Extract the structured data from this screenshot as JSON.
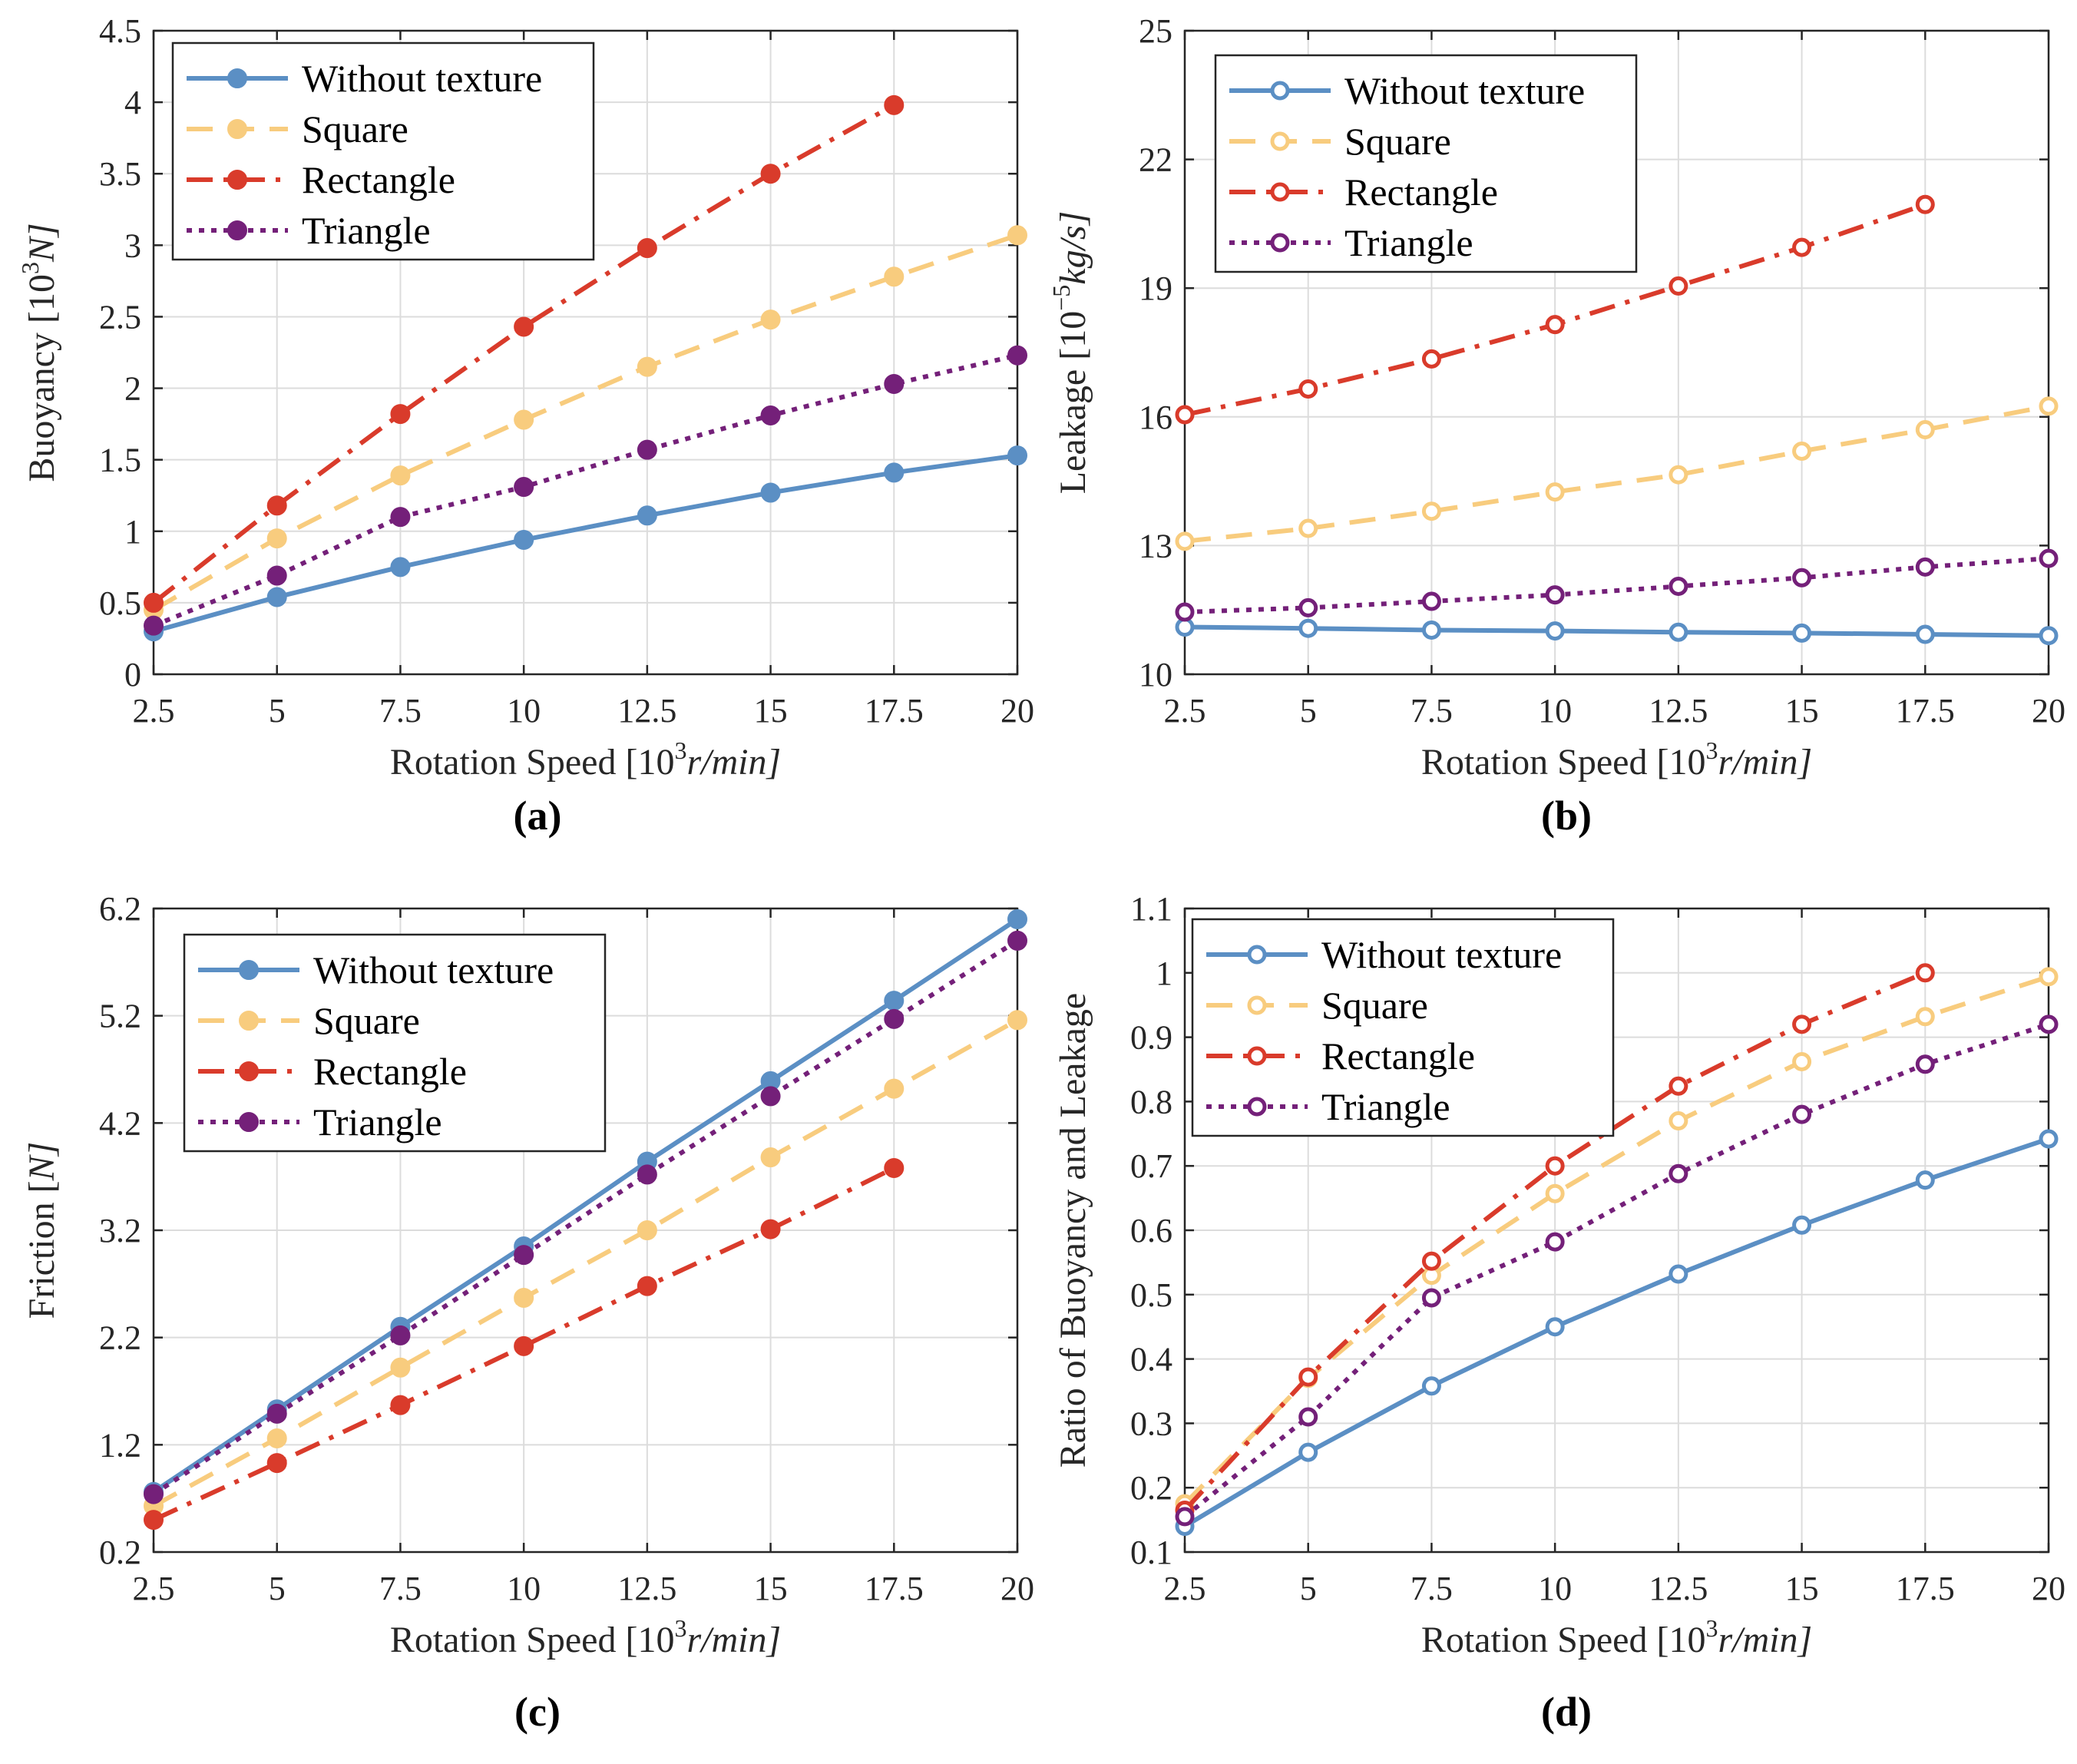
{
  "colors": {
    "without_texture": "#5b8fc4",
    "square": "#f8cc7e",
    "rectangle": "#d93b2b",
    "triangle": "#742079"
  },
  "legend_labels": [
    "Without texture",
    "Square",
    "Rectangle",
    "Triangle"
  ],
  "chart_data": [
    {
      "type": "line",
      "panel": "(a)",
      "xlabel_main": "Rotation Speed [10",
      "xlabel_sup": "3",
      "xlabel_tail": "r/min]",
      "ylabel_main": "Buoyancy [10",
      "ylabel_sup": "3",
      "ylabel_tail": "N]",
      "xlim": [
        2.5,
        20
      ],
      "ylim": [
        0,
        4.5
      ],
      "xticks": [
        "2.5",
        "5",
        "7.5",
        "10",
        "12.5",
        "15",
        "17.5",
        "20"
      ],
      "yticks": [
        "0",
        "0.5",
        "1",
        "1.5",
        "2",
        "2.5",
        "3",
        "3.5",
        "4",
        "4.5"
      ],
      "legend_loc": "top-left",
      "series": [
        {
          "name": "Without texture",
          "style": "solid",
          "x": [
            2.5,
            5,
            7.5,
            10,
            12.5,
            15,
            17.5,
            20
          ],
          "values": [
            0.3,
            0.54,
            0.75,
            0.94,
            1.11,
            1.27,
            1.41,
            1.53
          ]
        },
        {
          "name": "Square",
          "style": "dashed",
          "x": [
            2.5,
            5,
            7.5,
            10,
            12.5,
            15,
            17.5,
            20
          ],
          "values": [
            0.45,
            0.95,
            1.39,
            1.78,
            2.15,
            2.48,
            2.78,
            3.07
          ]
        },
        {
          "name": "Rectangle",
          "style": "dashdot",
          "x": [
            2.5,
            5,
            7.5,
            10,
            12.5,
            15,
            17.5
          ],
          "values": [
            0.5,
            1.18,
            1.82,
            2.43,
            2.98,
            3.5,
            3.98
          ]
        },
        {
          "name": "Triangle",
          "style": "dotted",
          "x": [
            2.5,
            5,
            7.5,
            10,
            12.5,
            15,
            17.5,
            20
          ],
          "values": [
            0.34,
            0.69,
            1.1,
            1.31,
            1.57,
            1.81,
            2.03,
            2.23
          ]
        }
      ]
    },
    {
      "type": "line",
      "panel": "(b)",
      "xlabel_main": "Rotation Speed [10",
      "xlabel_sup": "3",
      "xlabel_tail": "r/min]",
      "ylabel_main": "Leakage [10",
      "ylabel_sup": "−5",
      "ylabel_tail": "kg/s]",
      "xlim": [
        2.5,
        20
      ],
      "ylim": [
        10,
        25
      ],
      "xticks": [
        "2.5",
        "5",
        "7.5",
        "10",
        "12.5",
        "15",
        "17.5",
        "20"
      ],
      "yticks": [
        "10",
        "13",
        "16",
        "19",
        "22",
        "25"
      ],
      "legend_loc": "top-left",
      "series": [
        {
          "name": "Without texture",
          "style": "solid",
          "x": [
            2.5,
            5,
            7.5,
            10,
            12.5,
            15,
            17.5,
            20
          ],
          "values": [
            11.1,
            11.07,
            11.03,
            11.01,
            10.98,
            10.96,
            10.93,
            10.9
          ]
        },
        {
          "name": "Square",
          "style": "dashed",
          "x": [
            2.5,
            5,
            7.5,
            10,
            12.5,
            15,
            17.5,
            20
          ],
          "values": [
            13.1,
            13.4,
            13.8,
            14.25,
            14.65,
            15.2,
            15.7,
            16.25
          ]
        },
        {
          "name": "Rectangle",
          "style": "dashdot",
          "x": [
            2.5,
            5,
            7.5,
            10,
            12.5,
            15,
            17.5
          ],
          "values": [
            16.05,
            16.65,
            17.35,
            18.15,
            19.05,
            19.95,
            20.95
          ]
        },
        {
          "name": "Triangle",
          "style": "dotted",
          "x": [
            2.5,
            5,
            7.5,
            10,
            12.5,
            15,
            17.5,
            20
          ],
          "values": [
            11.45,
            11.55,
            11.7,
            11.85,
            12.05,
            12.25,
            12.5,
            12.7
          ]
        }
      ]
    },
    {
      "type": "line",
      "panel": "(c)",
      "xlabel_main": "Rotation Speed [10",
      "xlabel_sup": "3",
      "xlabel_tail": "r/min]",
      "ylabel_main": "Friction [",
      "ylabel_sup": "",
      "ylabel_tail": "N]",
      "xlim": [
        2.5,
        20
      ],
      "ylim": [
        0.2,
        6.2
      ],
      "xticks": [
        "2.5",
        "5",
        "7.5",
        "10",
        "12.5",
        "15",
        "17.5",
        "20"
      ],
      "yticks": [
        "0.2",
        "1.2",
        "2.2",
        "3.2",
        "4.2",
        "5.2",
        "6.2"
      ],
      "legend_loc": "top-left",
      "series": [
        {
          "name": "Without texture",
          "style": "solid",
          "x": [
            2.5,
            5,
            7.5,
            10,
            12.5,
            15,
            17.5,
            20
          ],
          "values": [
            0.76,
            1.53,
            2.3,
            3.05,
            3.84,
            4.59,
            5.34,
            6.1
          ]
        },
        {
          "name": "Square",
          "style": "dashed",
          "x": [
            2.5,
            5,
            7.5,
            10,
            12.5,
            15,
            17.5,
            20
          ],
          "values": [
            0.63,
            1.26,
            1.92,
            2.57,
            3.2,
            3.88,
            4.52,
            5.16
          ]
        },
        {
          "name": "Rectangle",
          "style": "dashdot",
          "x": [
            2.5,
            5,
            7.5,
            10,
            12.5,
            15,
            17.5
          ],
          "values": [
            0.5,
            1.03,
            1.57,
            2.12,
            2.68,
            3.21,
            3.78
          ]
        },
        {
          "name": "Triangle",
          "style": "dotted",
          "x": [
            2.5,
            5,
            7.5,
            10,
            12.5,
            15,
            17.5,
            20
          ],
          "values": [
            0.74,
            1.49,
            2.22,
            2.97,
            3.72,
            4.45,
            5.17,
            5.9
          ]
        }
      ]
    },
    {
      "type": "line",
      "panel": "(d)",
      "xlabel_main": "Rotation Speed [10",
      "xlabel_sup": "3",
      "xlabel_tail": "r/min]",
      "ylabel_main": "Ratio of Buoyancy and Leakage",
      "ylabel_sup": "",
      "ylabel_tail": "",
      "xlim": [
        2.5,
        20
      ],
      "ylim": [
        0.1,
        1.1
      ],
      "xticks": [
        "2.5",
        "5",
        "7.5",
        "10",
        "12.5",
        "15",
        "17.5",
        "20"
      ],
      "yticks": [
        "0.1",
        "0.2",
        "0.3",
        "0.4",
        "0.5",
        "0.6",
        "0.7",
        "0.8",
        "0.9",
        "1",
        "1.1"
      ],
      "legend_loc": "top-left",
      "series": [
        {
          "name": "Without texture",
          "style": "solid",
          "x": [
            2.5,
            5,
            7.5,
            10,
            12.5,
            15,
            17.5,
            20
          ],
          "values": [
            0.14,
            0.255,
            0.358,
            0.45,
            0.532,
            0.608,
            0.678,
            0.742
          ]
        },
        {
          "name": "Square",
          "style": "dashed",
          "x": [
            2.5,
            5,
            7.5,
            10,
            12.5,
            15,
            17.5,
            20
          ],
          "values": [
            0.175,
            0.37,
            0.53,
            0.657,
            0.77,
            0.862,
            0.932,
            0.994
          ]
        },
        {
          "name": "Rectangle",
          "style": "dashdot",
          "x": [
            2.5,
            5,
            7.5,
            10,
            12.5,
            15,
            17.5
          ],
          "values": [
            0.165,
            0.372,
            0.552,
            0.7,
            0.824,
            0.92,
            1.0
          ]
        },
        {
          "name": "Triangle",
          "style": "dotted",
          "x": [
            2.5,
            5,
            7.5,
            10,
            12.5,
            15,
            17.5,
            20
          ],
          "values": [
            0.155,
            0.31,
            0.495,
            0.582,
            0.688,
            0.78,
            0.858,
            0.92
          ]
        }
      ]
    }
  ]
}
